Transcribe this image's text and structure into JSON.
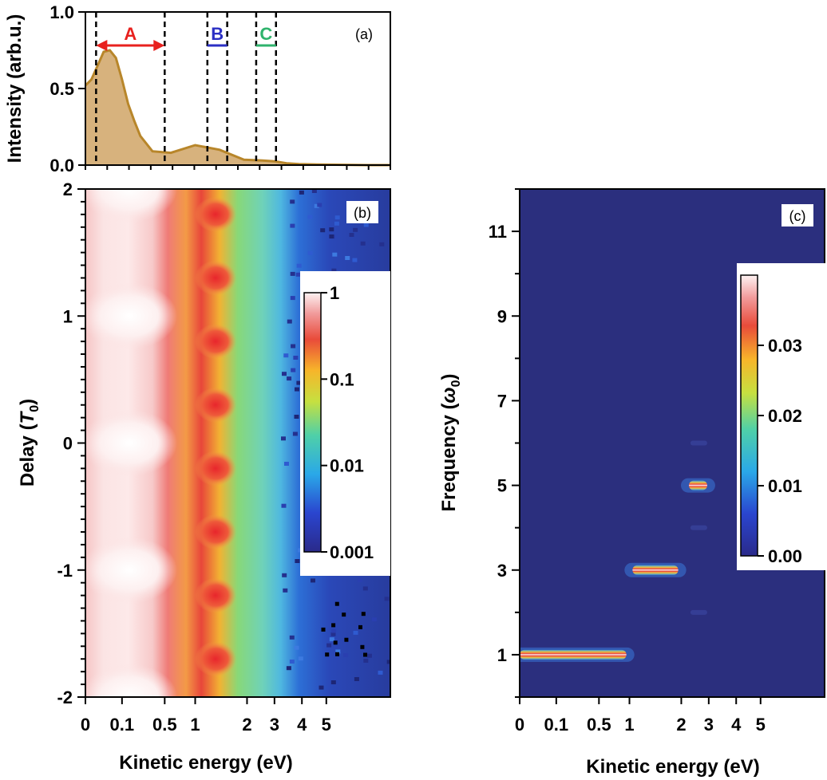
{
  "chart_data": [
    {
      "id": "a",
      "type": "area",
      "panel_label": "(a)",
      "ylabel": "Intensity (arb.u.)",
      "ylim": [
        0,
        1
      ],
      "yticks": [
        "0.0",
        "0.5",
        "1.0"
      ],
      "x": [
        0.0,
        0.02,
        0.04,
        0.06,
        0.08,
        0.1,
        0.12,
        0.14,
        0.16,
        0.18,
        0.22,
        0.28,
        0.36,
        0.44,
        0.52,
        0.58,
        0.62,
        0.66,
        0.7,
        0.76,
        0.84,
        0.92,
        1.0
      ],
      "values": [
        0.52,
        0.56,
        0.65,
        0.74,
        0.75,
        0.7,
        0.56,
        0.4,
        0.29,
        0.19,
        0.09,
        0.08,
        0.13,
        0.1,
        0.035,
        0.03,
        0.025,
        0.012,
        0.006,
        0.004,
        0.002,
        0.0,
        0.0
      ],
      "x_units": "normalized kinetic-energy axis (0 = 0 eV, 1 = right end)",
      "fill_color": "#d7b27d",
      "line_color": "#b8862a",
      "regions": [
        {
          "label": "A",
          "x_start": 0.035,
          "x_end": 0.26,
          "color": "#e8211e"
        },
        {
          "label": "B",
          "x_start": 0.4,
          "x_end": 0.465,
          "color": "#2b2fc4"
        },
        {
          "label": "C",
          "x_start": 0.56,
          "x_end": 0.625,
          "color": "#2fb36c"
        }
      ]
    },
    {
      "id": "b",
      "type": "heatmap",
      "panel_label": "(b)",
      "xlabel": "Kinetic energy (eV)",
      "ylabel": "Delay (T0)",
      "ylabel_main": "Delay (",
      "ylabel_sym": "T",
      "ylabel_sub": "0",
      "ylabel_close": ")",
      "ylim": [
        -2,
        2
      ],
      "yticks": [
        "2",
        "1",
        "0",
        "-1",
        "-2"
      ],
      "xticks": [
        "0",
        "0.1",
        "0.5",
        "1",
        "2",
        "3",
        "4",
        "5"
      ],
      "colorbar": {
        "scale": "log",
        "range": [
          0.001,
          1
        ],
        "ticks": [
          "1",
          "0.1",
          "0.01",
          "0.001"
        ]
      }
    },
    {
      "id": "c",
      "type": "heatmap",
      "panel_label": "(c)",
      "xlabel": "Kinetic energy (eV)",
      "ylabel": "Frequency (ω0)",
      "ylabel_main": "Frequency (",
      "ylabel_sym": "ω",
      "ylabel_sub": "0",
      "ylabel_close": ")",
      "ylim": [
        0,
        12
      ],
      "yticks": [
        "1",
        "3",
        "5",
        "7",
        "9",
        "11"
      ],
      "xticks": [
        "0",
        "0.1",
        "0.5",
        "1",
        "2",
        "3",
        "4",
        "5"
      ],
      "colorbar": {
        "scale": "linear",
        "range": [
          0,
          0.04
        ],
        "ticks": [
          "0.03",
          "0.02",
          "0.01",
          "0.00"
        ]
      },
      "peaks": [
        {
          "frequency": 1,
          "x_start": 0.0,
          "x_end": 0.35
        },
        {
          "frequency": 3,
          "x_start": 0.37,
          "x_end": 0.52
        },
        {
          "frequency": 5,
          "x_start": 0.555,
          "x_end": 0.615
        }
      ]
    }
  ]
}
